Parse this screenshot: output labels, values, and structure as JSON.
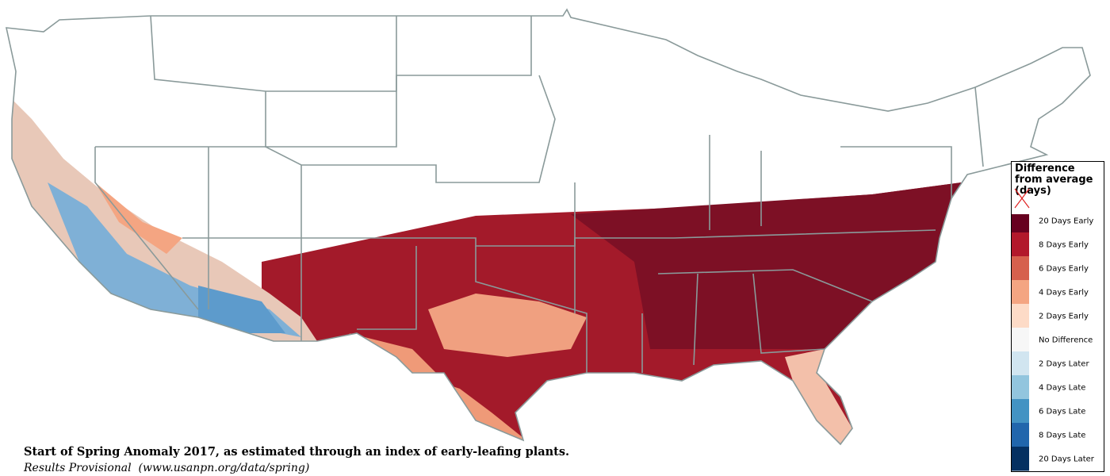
{
  "title": "Start of Spring Anomaly 2017, as estimated through an index of early-leafing plants.",
  "subtitle": "Results Provisional  (www.usanpn.org/data/spring)",
  "legend": {
    "title": "Difference from average (days)",
    "items": [
      {
        "label": "20 Days Early",
        "color": "#67001f"
      },
      {
        "label": "8 Days Early",
        "color": "#b2182b"
      },
      {
        "label": "6 Days Early",
        "color": "#d6604d"
      },
      {
        "label": "4 Days Early",
        "color": "#f4a582"
      },
      {
        "label": "2 Days Early",
        "color": "#fddbc7"
      },
      {
        "label": "No Difference",
        "color": "#f7f7f7"
      },
      {
        "label": "2 Days Later",
        "color": "#d1e5f0"
      },
      {
        "label": "4 Days Late",
        "color": "#92c5de"
      },
      {
        "label": "6 Days Late",
        "color": "#4393c3"
      },
      {
        "label": "8 Days Late",
        "color": "#2166ac"
      },
      {
        "label": "20 Days Later",
        "color": "#053061"
      }
    ]
  }
}
